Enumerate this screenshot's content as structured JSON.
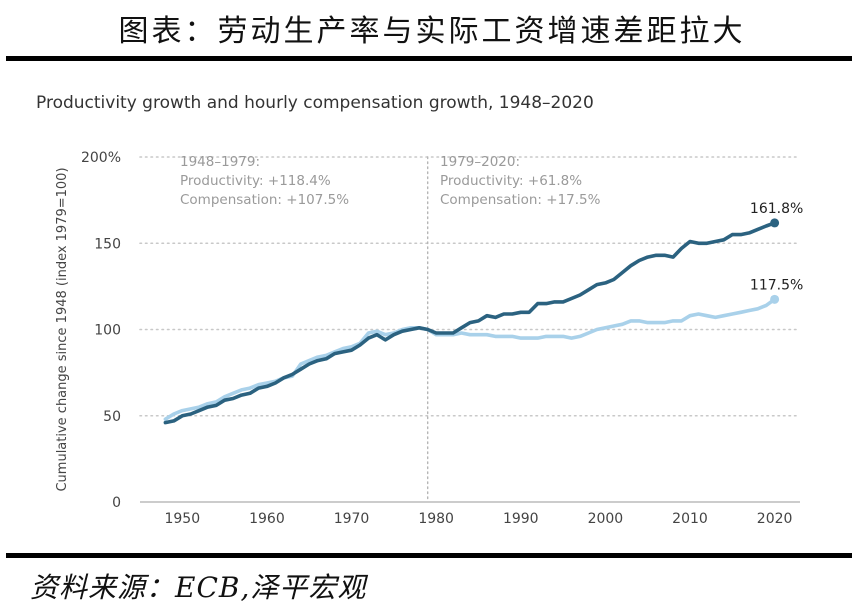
{
  "figure_title": "图表：劳动生产率与实际工资增速差距拉大",
  "source": "资料来源：ECB,泽平宏观",
  "chart_data": {
    "type": "line",
    "title": "Productivity growth and hourly compensation growth, 1948–2020",
    "xlabel": "",
    "ylabel": "Cumulative change since 1948 (index 1979=100)",
    "xlim": [
      1945,
      2023
    ],
    "ylim": [
      0,
      200
    ],
    "x_ticks": [
      1950,
      1960,
      1970,
      1980,
      1990,
      2000,
      2010,
      2020
    ],
    "x_tick_labels": [
      "1950",
      "1960",
      "1970",
      "1980",
      "1990",
      "2000",
      "2010",
      "2020"
    ],
    "y_ticks": [
      0,
      50,
      100,
      150,
      200
    ],
    "y_tick_labels": [
      "0",
      "50",
      "100",
      "150",
      "200%"
    ],
    "grid": "horizontal-dotted",
    "divider_year": 1979,
    "annotations": {
      "left": [
        "1948–1979:",
        "Productivity: +118.4%",
        "Compensation: +107.5%"
      ],
      "right": [
        "1979–2020:",
        "Productivity: +61.8%",
        "Compensation: +17.5%"
      ]
    },
    "colors": {
      "productivity": "#2b6280",
      "compensation": "#a9d1ea",
      "annotation": "#9a9a9a",
      "grid": "#c8c8c8"
    },
    "x": [
      1948,
      1949,
      1950,
      1951,
      1952,
      1953,
      1954,
      1955,
      1956,
      1957,
      1958,
      1959,
      1960,
      1961,
      1962,
      1963,
      1964,
      1965,
      1966,
      1967,
      1968,
      1969,
      1970,
      1971,
      1972,
      1973,
      1974,
      1975,
      1976,
      1977,
      1978,
      1979,
      1980,
      1981,
      1982,
      1983,
      1984,
      1985,
      1986,
      1987,
      1988,
      1989,
      1990,
      1991,
      1992,
      1993,
      1994,
      1995,
      1996,
      1997,
      1998,
      1999,
      2000,
      2001,
      2002,
      2003,
      2004,
      2005,
      2006,
      2007,
      2008,
      2009,
      2010,
      2011,
      2012,
      2013,
      2014,
      2015,
      2016,
      2017,
      2018,
      2019,
      2020
    ],
    "series": [
      {
        "name": "Productivity",
        "end_label": "161.8%",
        "values": [
          46,
          47,
          50,
          51,
          53,
          55,
          56,
          59,
          60,
          62,
          63,
          66,
          67,
          69,
          72,
          74,
          77,
          80,
          82,
          83,
          86,
          87,
          88,
          91,
          95,
          97,
          94,
          97,
          99,
          100,
          101,
          100,
          98,
          98,
          98,
          101,
          104,
          105,
          108,
          107,
          109,
          109,
          110,
          110,
          115,
          115,
          116,
          116,
          118,
          120,
          123,
          126,
          127,
          129,
          133,
          137,
          140,
          142,
          143,
          143,
          142,
          147,
          151,
          150,
          150,
          151,
          152,
          155,
          155,
          156,
          158,
          160,
          161.8
        ]
      },
      {
        "name": "Compensation",
        "end_label": "117.5%",
        "values": [
          48,
          51,
          53,
          54,
          55,
          57,
          58,
          61,
          63,
          65,
          66,
          68,
          69,
          70,
          72,
          73,
          80,
          82,
          84,
          85,
          87,
          89,
          90,
          92,
          98,
          99,
          97,
          98,
          100,
          101,
          101,
          100,
          97,
          97,
          97,
          98,
          97,
          97,
          97,
          96,
          96,
          96,
          95,
          95,
          95,
          96,
          96,
          96,
          95,
          96,
          98,
          100,
          101,
          102,
          103,
          105,
          105,
          104,
          104,
          104,
          105,
          105,
          108,
          109,
          108,
          107,
          108,
          109,
          110,
          111,
          112,
          114,
          117.5
        ]
      }
    ]
  }
}
